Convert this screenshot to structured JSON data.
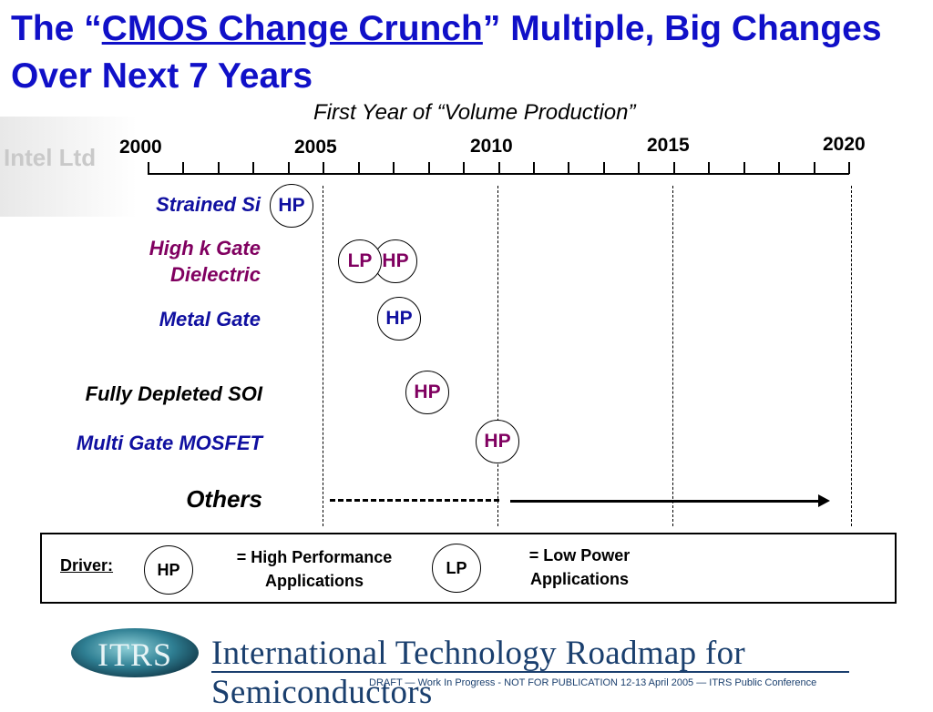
{
  "title": {
    "prefix": "The “",
    "highlight": "CMOS Change Crunch",
    "suffix": "” Multiple, Big Changes Over Next 7 Years"
  },
  "chart_data": {
    "type": "timeline",
    "title": "First Year of “Volume Production”",
    "years": [
      "2000",
      "2005",
      "2010",
      "2015",
      "2020"
    ],
    "xlim": [
      2000,
      2020
    ],
    "rows": [
      {
        "label": "Strained Si",
        "markers": [
          {
            "text": "HP",
            "year": 2004
          }
        ]
      },
      {
        "label_lines": [
          "High k Gate",
          "Dielectric"
        ],
        "markers": [
          {
            "text": "LP",
            "year": 2006
          },
          {
            "text": "HP",
            "year": 2007
          }
        ]
      },
      {
        "label": "Metal Gate",
        "markers": [
          {
            "text": "HP",
            "year": 2007
          }
        ]
      },
      {
        "label": "Fully Depleted SOI",
        "markers": [
          {
            "text": "HP",
            "year": 2008
          }
        ]
      },
      {
        "label": "Multi Gate MOSFET",
        "markers": [
          {
            "text": "HP",
            "year": 2010
          }
        ]
      },
      {
        "label": "Others",
        "range_dashed": [
          2005,
          2010
        ],
        "range_solid": [
          2010,
          2019.5
        ]
      }
    ],
    "reference_years": [
      2005,
      2010,
      2015,
      2020
    ]
  },
  "legend": {
    "driver_label": "Driver:",
    "items": [
      {
        "badge": "HP",
        "lines": [
          "= High Performance",
          "Applications"
        ]
      },
      {
        "badge": "LP",
        "lines": [
          "= Low Power",
          "Applications"
        ]
      }
    ]
  },
  "footer": {
    "logo_text": "ITRS",
    "org": "International Technology Roadmap for Semiconductors",
    "note": "DRAFT — Work In Progress - NOT FOR PUBLICATION      12-13 April 2005 — ITRS Public Conference"
  },
  "colors": {
    "title": "#1010c8",
    "label_blue": "#1010a0",
    "label_purple": "#800060",
    "footer": "#1a3f6e"
  }
}
